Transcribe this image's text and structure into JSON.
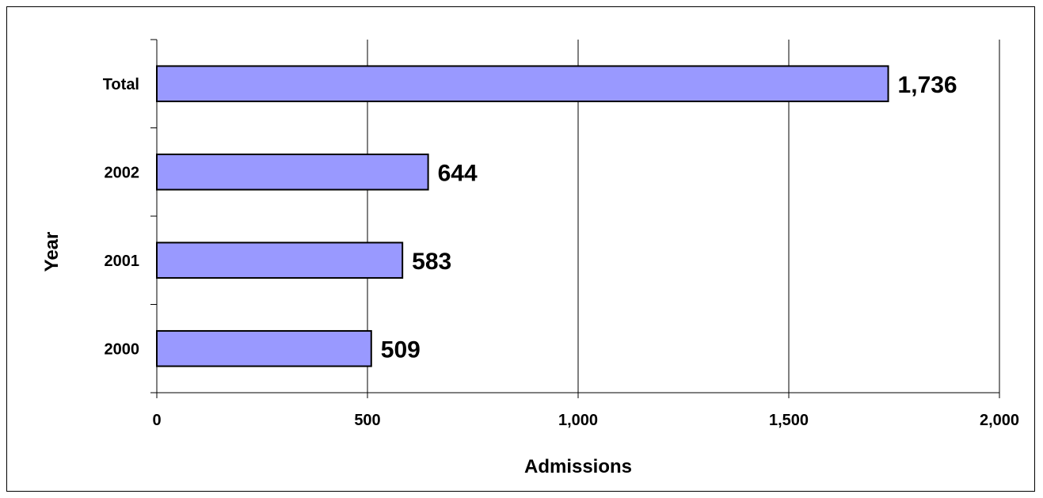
{
  "chart_data": {
    "type": "bar",
    "orientation": "horizontal",
    "categories": [
      "Total",
      "2002",
      "2001",
      "2000"
    ],
    "values": [
      1736,
      644,
      583,
      509
    ],
    "value_labels": [
      "1,736",
      "644",
      "583",
      "509"
    ],
    "xlabel": "Admissions",
    "ylabel": "Year",
    "xlim": [
      0,
      2000
    ],
    "x_ticks": [
      0,
      500,
      1000,
      1500,
      2000
    ],
    "x_tick_labels": [
      "0",
      "500",
      "1,000",
      "1,500",
      "2,000"
    ],
    "grid": "vertical",
    "bar_color": "#9999ff",
    "legend": "none"
  }
}
